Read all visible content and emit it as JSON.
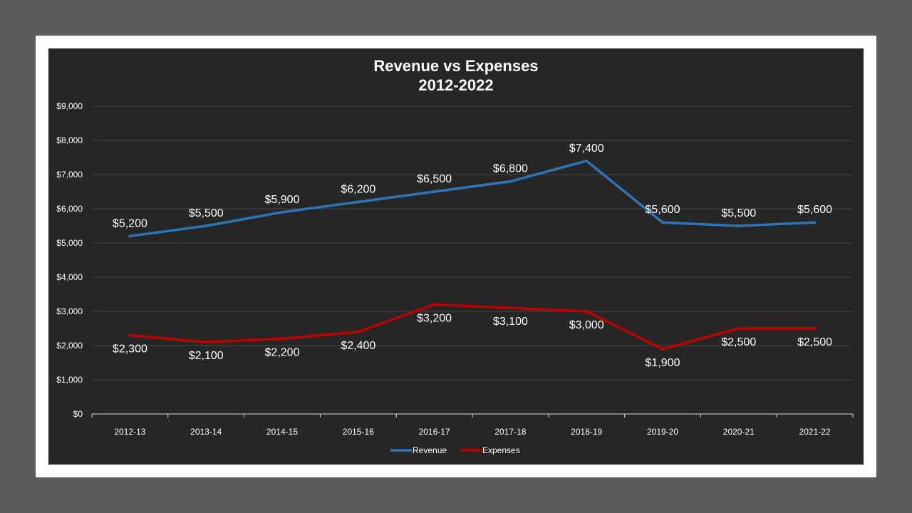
{
  "chart_data": {
    "type": "line",
    "title": [
      "Revenue vs Expenses",
      "2012-2022"
    ],
    "categories": [
      "2012-13",
      "2013-14",
      "2014-15",
      "2015-16",
      "2016-17",
      "2017-18",
      "2018-19",
      "2019-20",
      "2020-21",
      "2021-22"
    ],
    "ylim": [
      0,
      9000
    ],
    "yticks": [
      0,
      1000,
      2000,
      3000,
      4000,
      5000,
      6000,
      7000,
      8000,
      9000
    ],
    "ytick_labels": [
      "$0",
      "$1,000",
      "$2,000",
      "$3,000",
      "$4,000",
      "$5,000",
      "$6,000",
      "$7,000",
      "$8,000",
      "$9,000"
    ],
    "grid": true,
    "legend_position": "bottom",
    "series": [
      {
        "name": "Revenue",
        "color": "#2e75b6",
        "label_position": "above",
        "values": [
          5200,
          5500,
          5900,
          6200,
          6500,
          6800,
          7400,
          5600,
          5500,
          5600
        ],
        "labels": [
          "$5,200",
          "$5,500",
          "$5,900",
          "$6,200",
          "$6,500",
          "$6,800",
          "$7,400",
          "$5,600",
          "$5,500",
          "$5,600"
        ]
      },
      {
        "name": "Expenses",
        "color": "#c00000",
        "label_position": "below",
        "values": [
          2300,
          2100,
          2200,
          2400,
          3200,
          3100,
          3000,
          1900,
          2500,
          2500
        ],
        "labels": [
          "$2,300",
          "$2,100",
          "$2,200",
          "$2,400",
          "$3,200",
          "$3,100",
          "$3,000",
          "$1,900",
          "$2,500",
          "$2,500"
        ]
      }
    ]
  }
}
